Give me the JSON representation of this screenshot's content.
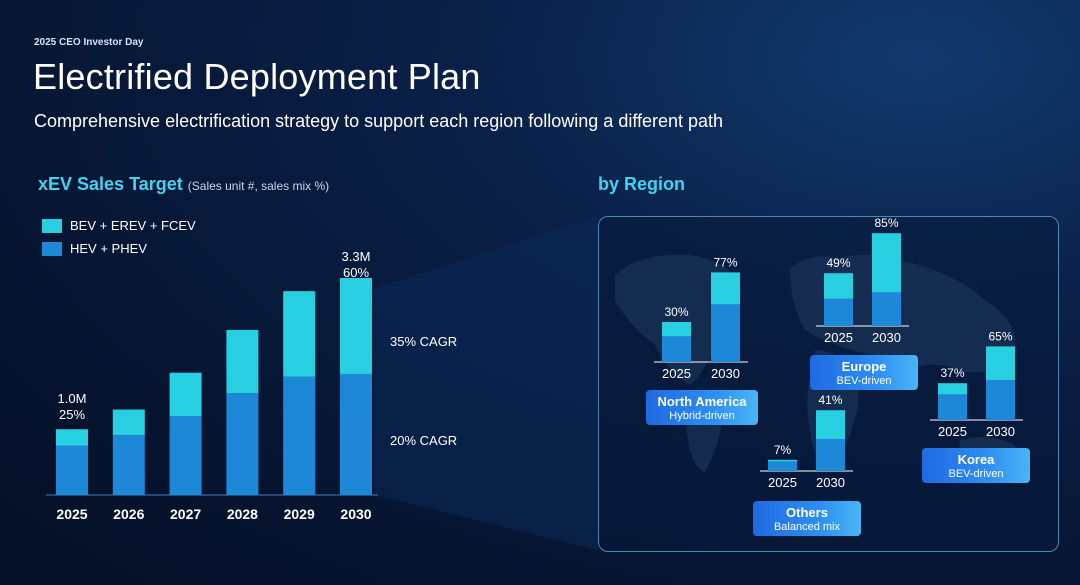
{
  "header": {
    "event": "2025 CEO Investor Day",
    "title": "Electrified Deployment Plan",
    "subtitle": "Comprehensive electrification strategy to support each region following a different path"
  },
  "left_panel": {
    "title": "xEV Sales Target",
    "title_note": "(Sales unit #, sales mix %)",
    "annotations": {
      "start_total": "1.0M",
      "start_mix": "25%",
      "end_total": "3.3M",
      "end_mix": "60%",
      "cagr_top": "35% CAGR",
      "cagr_bottom": "20% CAGR"
    }
  },
  "right_panel": {
    "title": "by Region"
  },
  "colors": {
    "bev": "#27cfe0",
    "hev": "#1e88d8",
    "accent_title": "#43d3f0"
  },
  "chart_data": [
    {
      "type": "bar",
      "stacked": true,
      "title": "xEV Sales Target",
      "categories": [
        "2025",
        "2026",
        "2027",
        "2028",
        "2029",
        "2030"
      ],
      "series": [
        {
          "name": "HEV + PHEV",
          "values": [
            0.75,
            0.91,
            1.2,
            1.55,
            1.8,
            1.84
          ]
        },
        {
          "name": "BEV + EREV + FCEV",
          "values": [
            0.25,
            0.39,
            0.66,
            0.96,
            1.3,
            1.46
          ]
        }
      ],
      "ylim": [
        0,
        3.5
      ]
    },
    {
      "type": "bar",
      "stacked": true,
      "region": "North America",
      "region_desc": "Hybrid-driven",
      "categories": [
        "2025",
        "2030"
      ],
      "mix_labels": [
        "30%",
        "77%"
      ],
      "series": [
        {
          "name": "HEV + PHEV",
          "values": [
            0.8,
            1.8
          ]
        },
        {
          "name": "BEV + EREV + FCEV",
          "values": [
            0.45,
            1.0
          ]
        }
      ]
    },
    {
      "type": "bar",
      "stacked": true,
      "region": "Europe",
      "region_desc": "BEV-driven",
      "categories": [
        "2025",
        "2030"
      ],
      "mix_labels": [
        "49%",
        "85%"
      ],
      "series": [
        {
          "name": "HEV + PHEV",
          "values": [
            0.85,
            1.05
          ]
        },
        {
          "name": "BEV + EREV + FCEV",
          "values": [
            0.8,
            1.85
          ]
        }
      ]
    },
    {
      "type": "bar",
      "stacked": true,
      "region": "Korea",
      "region_desc": "BEV-driven",
      "categories": [
        "2025",
        "2030"
      ],
      "mix_labels": [
        "37%",
        "65%"
      ],
      "series": [
        {
          "name": "HEV + PHEV",
          "values": [
            0.8,
            1.25
          ]
        },
        {
          "name": "BEV + EREV + FCEV",
          "values": [
            0.35,
            1.05
          ]
        }
      ]
    },
    {
      "type": "bar",
      "stacked": true,
      "region": "Others",
      "region_desc": "Balanced mix",
      "categories": [
        "2025",
        "2030"
      ],
      "mix_labels": [
        "7%",
        "41%"
      ],
      "series": [
        {
          "name": "HEV + PHEV",
          "values": [
            0.3,
            1.0
          ]
        },
        {
          "name": "BEV + EREV + FCEV",
          "values": [
            0.05,
            0.9
          ]
        }
      ]
    }
  ]
}
